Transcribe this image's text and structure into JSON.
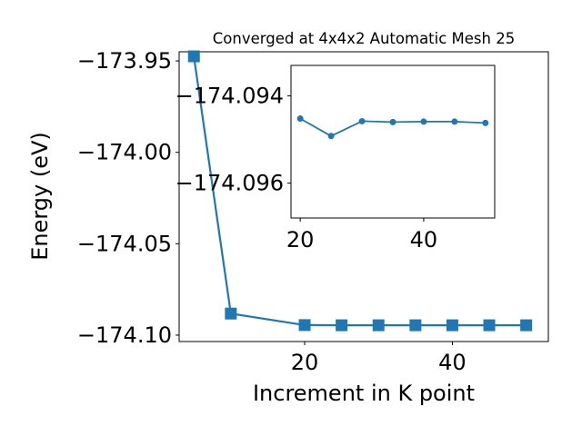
{
  "chart_data": {
    "type": "line",
    "title": "Converged at 4x4x2 Automatic Mesh 25",
    "xlabel": "Increment in K point",
    "ylabel": "Energy (eV)",
    "colors": {
      "series": "#1f77b4"
    },
    "main": {
      "xlim": [
        3,
        53
      ],
      "ylim": [
        -174.1035,
        -173.945
      ],
      "xticks": [
        20,
        40
      ],
      "xtick_labels": [
        "20",
        "40"
      ],
      "yticks": [
        -174.1,
        -174.05,
        -174.0,
        -173.95
      ],
      "ytick_labels": [
        "−174.10",
        "−174.05",
        "−174.00",
        "−173.95"
      ],
      "marker": "square",
      "series": [
        {
          "x": [
            5,
            10,
            20,
            25,
            30,
            35,
            40,
            45,
            50
          ],
          "y": [
            -173.9475,
            -174.0882,
            -174.0945,
            -174.0946,
            -174.0946,
            -174.0946,
            -174.0946,
            -174.0946,
            -174.0946
          ]
        }
      ]
    },
    "inset": {
      "xlim": [
        18.5,
        51.5
      ],
      "ylim": [
        -174.0968,
        -174.0933
      ],
      "xticks": [
        20,
        40
      ],
      "xtick_labels": [
        "20",
        "40"
      ],
      "yticks": [
        -174.096,
        -174.094
      ],
      "ytick_labels": [
        "−174.096",
        "−174.094"
      ],
      "marker": "circle",
      "series": [
        {
          "x": [
            20,
            25,
            30,
            35,
            40,
            45,
            50
          ],
          "y": [
            -174.09452,
            -174.09492,
            -174.09458,
            -174.0946,
            -174.09459,
            -174.09459,
            -174.09462
          ]
        }
      ]
    }
  }
}
